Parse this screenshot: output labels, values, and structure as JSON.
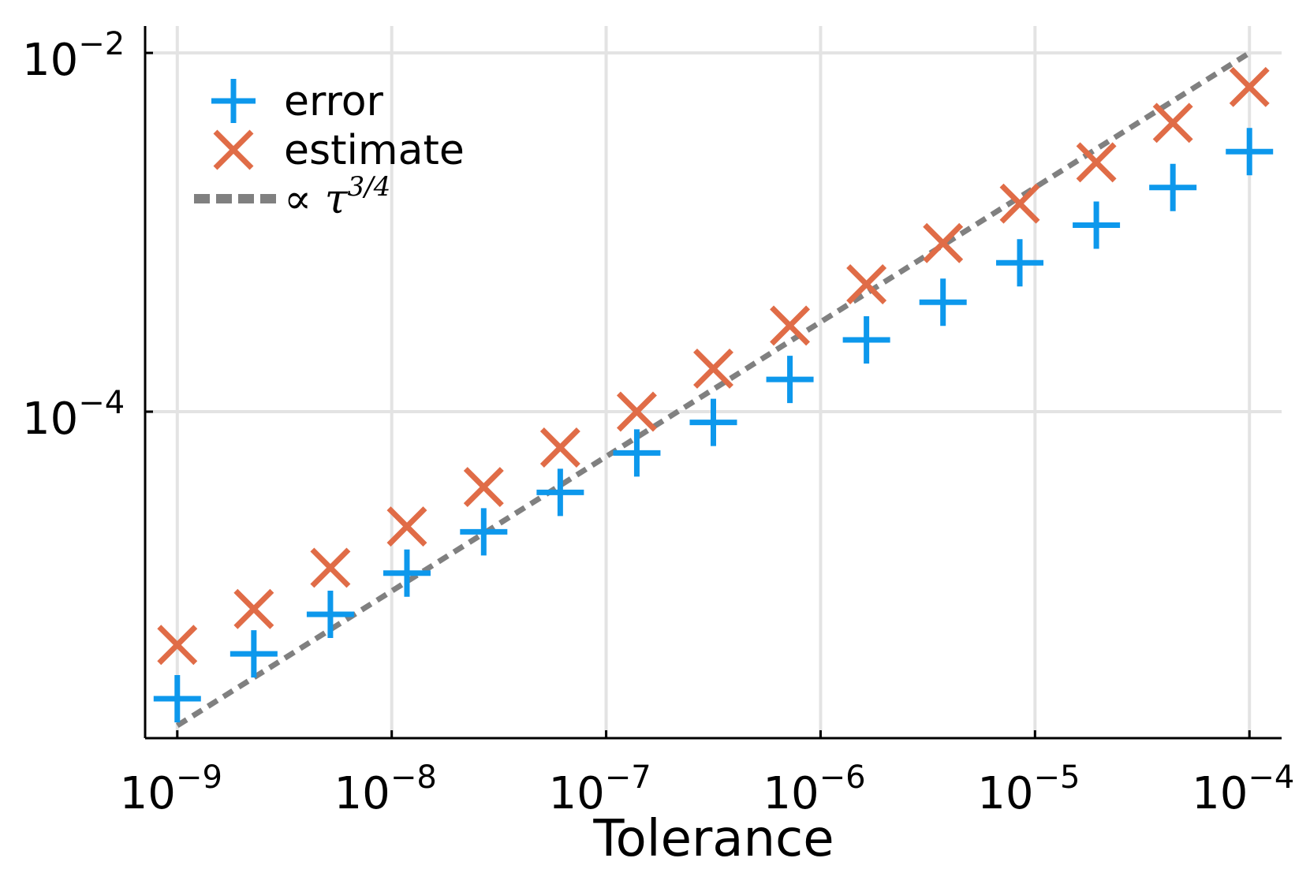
{
  "chart_data": {
    "type": "scatter",
    "xscale": "log10",
    "yscale": "log10",
    "xlabel": "Tolerance",
    "ylabel": "",
    "xlim_exp": [
      -9.15,
      -3.85
    ],
    "ylim_exp": [
      -5.82,
      -1.85
    ],
    "x_ticks": [
      {
        "base": "10",
        "exp": "−9",
        "value_exp": -9
      },
      {
        "base": "10",
        "exp": "−8",
        "value_exp": -8
      },
      {
        "base": "10",
        "exp": "−7",
        "value_exp": -7
      },
      {
        "base": "10",
        "exp": "−6",
        "value_exp": -6
      },
      {
        "base": "10",
        "exp": "−5",
        "value_exp": -5
      },
      {
        "base": "10",
        "exp": "−4",
        "value_exp": -4
      }
    ],
    "y_ticks": [
      {
        "base": "10",
        "exp": "−2",
        "value_exp": -2
      },
      {
        "base": "10",
        "exp": "−4",
        "value_exp": -4
      }
    ],
    "grid": true,
    "legend_position": "top-left",
    "series": [
      {
        "name": "error",
        "marker": "plus",
        "color": "#0d98ec",
        "x_exp": [
          -9.0,
          -8.643,
          -8.286,
          -7.929,
          -7.571,
          -7.214,
          -6.857,
          -6.5,
          -6.143,
          -5.786,
          -5.429,
          -5.071,
          -4.714,
          -4.357,
          -4.0
        ],
        "y_exp": [
          -5.6,
          -5.35,
          -5.13,
          -4.9,
          -4.67,
          -4.45,
          -4.23,
          -4.06,
          -3.82,
          -3.6,
          -3.39,
          -3.17,
          -2.96,
          -2.75,
          -2.55
        ]
      },
      {
        "name": "estimate",
        "marker": "x",
        "color": "#e06c47",
        "x_exp": [
          -9.0,
          -8.643,
          -8.286,
          -7.929,
          -7.571,
          -7.214,
          -6.857,
          -6.5,
          -6.143,
          -5.786,
          -5.429,
          -5.071,
          -4.714,
          -4.357,
          -4.0
        ],
        "y_exp": [
          -5.3,
          -5.1,
          -4.87,
          -4.64,
          -4.42,
          -4.2,
          -4.0,
          -3.76,
          -3.52,
          -3.29,
          -3.06,
          -2.84,
          -2.61,
          -2.39,
          -2.19
        ]
      },
      {
        "name": "∝ τ",
        "name_superscript": "3/4",
        "marker": "line-dashed",
        "color": "#808080",
        "x_exp": [
          -9.0,
          -4.0
        ],
        "y_exp": [
          -5.75,
          -2.0
        ]
      }
    ]
  }
}
